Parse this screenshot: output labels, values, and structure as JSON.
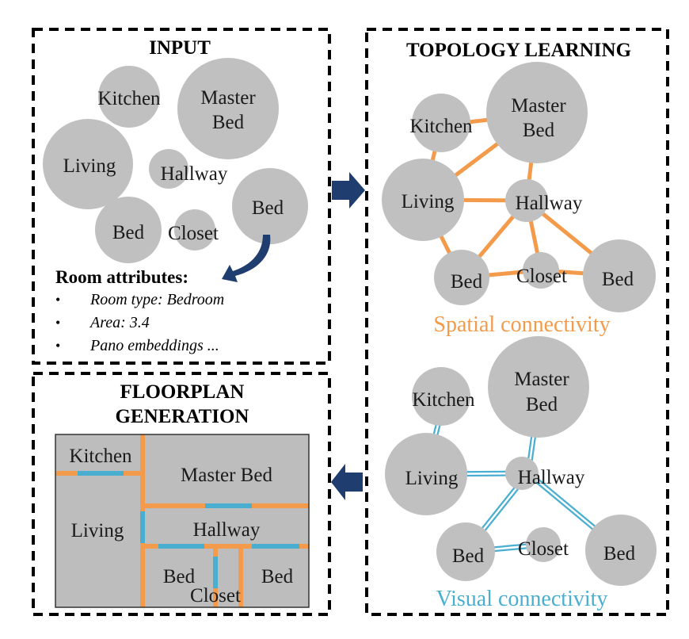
{
  "colors": {
    "room_fill": "#c0c0c0",
    "spatial_edge": "#f39b4a",
    "visual_edge": "#4aaed0",
    "arrow": "#1f3d6e",
    "floor_fill": "#bdbdbd"
  },
  "input": {
    "title": "INPUT",
    "rooms": {
      "kitchen": "Kitchen",
      "master_line1": "Master",
      "master_line2": "Bed",
      "living": "Living",
      "hallway": "Hallway",
      "bed_right": "Bed",
      "bed_left": "Bed",
      "closet": "Closet"
    },
    "attributes_heading": "Room attributes:",
    "attributes": [
      "Room type: Bedroom",
      "Area: 3.4",
      "Pano embeddings ..."
    ]
  },
  "topology": {
    "title": "TOPOLOGY LEARNING",
    "rooms": {
      "kitchen": "Kitchen",
      "master_line1": "Master",
      "master_line2": "Bed",
      "living": "Living",
      "hallway": "Hallway",
      "bed_left": "Bed",
      "closet": "Closet",
      "bed_right": "Bed"
    },
    "spatial_caption": "Spatial connectivity",
    "visual_caption": "Visual connectivity"
  },
  "floorplan": {
    "title_line1": "FLOORPLAN",
    "title_line2": "GENERATION",
    "rooms": {
      "kitchen": "Kitchen",
      "master": "Master Bed",
      "living": "Living",
      "hallway": "Hallway",
      "bed_left": "Bed",
      "bed_right": "Bed",
      "closet": "Closet"
    }
  }
}
